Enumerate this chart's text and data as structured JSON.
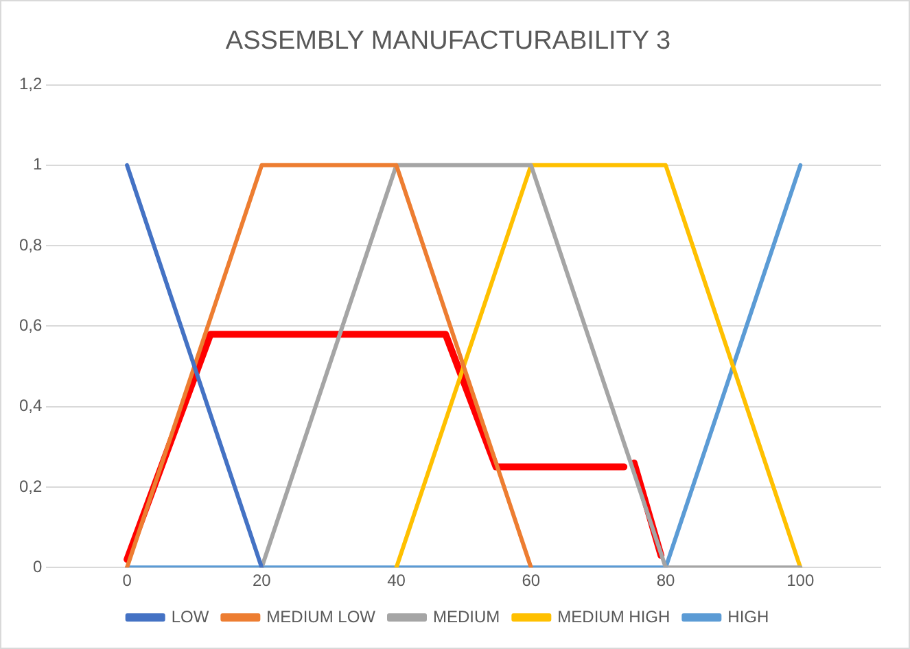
{
  "chart_data": {
    "type": "line",
    "title": "ASSEMBLY MANUFACTURABILITY 3",
    "xlim": [
      -12,
      112
    ],
    "xticks": [
      0,
      20,
      40,
      60,
      80,
      100
    ],
    "ylim": [
      0,
      1.2
    ],
    "yticks": [
      0,
      {
        "value": 0.2,
        "label": "0,2"
      },
      {
        "value": 0.4,
        "label": "0,4"
      },
      {
        "value": 0.6,
        "label": "0,6"
      },
      {
        "value": 0.8,
        "label": "0,8"
      },
      1,
      {
        "value": 1.2,
        "label": "1,2"
      }
    ],
    "grid": "y",
    "legend": "bottom",
    "marker": "none",
    "line_style": "solid",
    "series": [
      {
        "name": "LOW",
        "color": "#4472c4",
        "x": [
          0,
          20
        ],
        "values": [
          1,
          0
        ]
      },
      {
        "name": "MEDIUM LOW",
        "color": "#ed7d31",
        "x": [
          0,
          20,
          40,
          60
        ],
        "values": [
          0,
          1,
          1,
          0
        ]
      },
      {
        "name": "MEDIUM",
        "color": "#a5a5a5",
        "x": [
          20,
          40,
          60,
          80,
          100
        ],
        "values": [
          0,
          1,
          1,
          0,
          0
        ]
      },
      {
        "name": "MEDIUM HIGH",
        "color": "#ffc000",
        "x": [
          40,
          60,
          80,
          100
        ],
        "values": [
          0,
          1,
          1,
          0
        ]
      },
      {
        "name": "HIGH",
        "color": "#5b9bd5",
        "x": [
          0,
          80,
          100
        ],
        "values": [
          0,
          0,
          1
        ]
      },
      {
        "color": "#ff0000",
        "x": [
          0,
          12.4,
          47.3,
          54.8,
          73.8,
          74.5,
          75.3,
          79.3
        ],
        "values": [
          0.02,
          0.58,
          0.58,
          0.25,
          0.25,
          null,
          0.26,
          0.03
        ]
      }
    ]
  }
}
